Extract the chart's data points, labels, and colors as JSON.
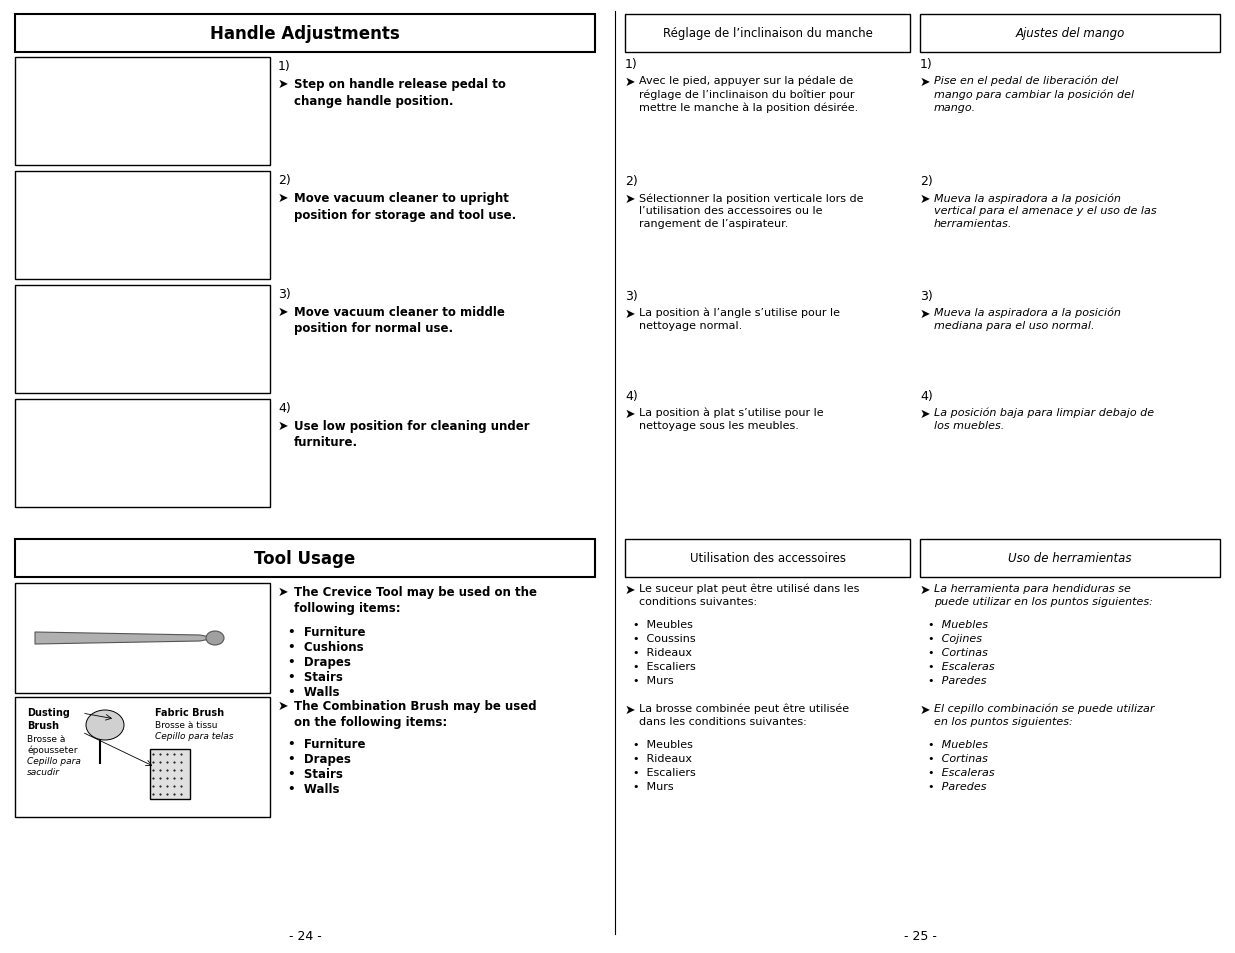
{
  "bg_color": "#ffffff",
  "text_color": "#000000",
  "left_title": "Handle Adjustments",
  "tool_title": "Tool Usage",
  "fr_header": "Réglage de l’inclinaison du manche",
  "es_header": "Ajustes del mango",
  "fr_tool_header": "Utilisation des accessoires",
  "es_tool_header": "Uso de herramientas",
  "handle_sections_en": [
    {
      "num": "1)",
      "text": "Step on handle release pedal to\nchange handle position."
    },
    {
      "num": "2)",
      "text": "Move vacuum cleaner to upright\nposition for storage and tool use."
    },
    {
      "num": "3)",
      "text": "Move vacuum cleaner to middle\nposition for normal use."
    },
    {
      "num": "4)",
      "text": "Use low position for cleaning under\nfurniture."
    }
  ],
  "handle_sections_fr": [
    {
      "num": "1)",
      "text": "Avec le pied, appuyer sur la pédale de\nréglage de l’inclinaison du boîtier pour\nmettre le manche à la position désirée."
    },
    {
      "num": "2)",
      "text": "Sélectionner la position verticale lors de\nl’utilisation des accessoires ou le\nrangement de l’aspirateur."
    },
    {
      "num": "3)",
      "text": "La position à l’angle s’utilise pour le\nnettoyage normal."
    },
    {
      "num": "4)",
      "text": "La position à plat s’utilise pour le\nnettoyage sous les meubles."
    }
  ],
  "handle_sections_es": [
    {
      "num": "1)",
      "text": "Pise en el pedal de liberación del\nmango para cambiar la posición del\nmango."
    },
    {
      "num": "2)",
      "text": "Mueva la aspiradora a la posición\nvertical para el amenace y el uso de las\nherramientas."
    },
    {
      "num": "3)",
      "text": "Mueva la aspiradora a la posición\nmediana para el uso normal."
    },
    {
      "num": "4)",
      "text": "La posición baja para limpiar debajo de\nlos muebles."
    }
  ],
  "tool_crevice_en": "The Crevice Tool may be used on the\nfollowing items:",
  "tool_crevice_items_en": [
    "Furniture",
    "Cushions",
    "Drapes",
    "Stairs",
    "Walls"
  ],
  "tool_combo_en": "The Combination Brush may be used\non the following items:",
  "tool_combo_items_en": [
    "Furniture",
    "Drapes",
    "Stairs",
    "Walls"
  ],
  "tool_crevice_fr": "Le suceur plat peut être utilisé dans les\nconditions suivantes:",
  "tool_crevice_items_fr": [
    "Meubles",
    "Coussins",
    "Rideaux",
    "Escaliers",
    "Murs"
  ],
  "tool_combo_fr": "La brosse combinée peut être utilisée\ndans les conditions suivantes:",
  "tool_combo_items_fr": [
    "Meubles",
    "Rideaux",
    "Escaliers",
    "Murs"
  ],
  "tool_crevice_es": "La herramienta para hendiduras se\npuede utilizar en los puntos siguientes:",
  "tool_crevice_items_es": [
    "Muebles",
    "Cojines",
    "Cortinas",
    "Escaleras",
    "Paredes"
  ],
  "tool_combo_es": "El cepillo combinación se puede utilizar\nen los puntos siguientes:",
  "tool_combo_items_es": [
    "Muebles",
    "Cortinas",
    "Escaleras",
    "Paredes"
  ],
  "page_left": "- 24 -",
  "page_right": "- 25 -"
}
